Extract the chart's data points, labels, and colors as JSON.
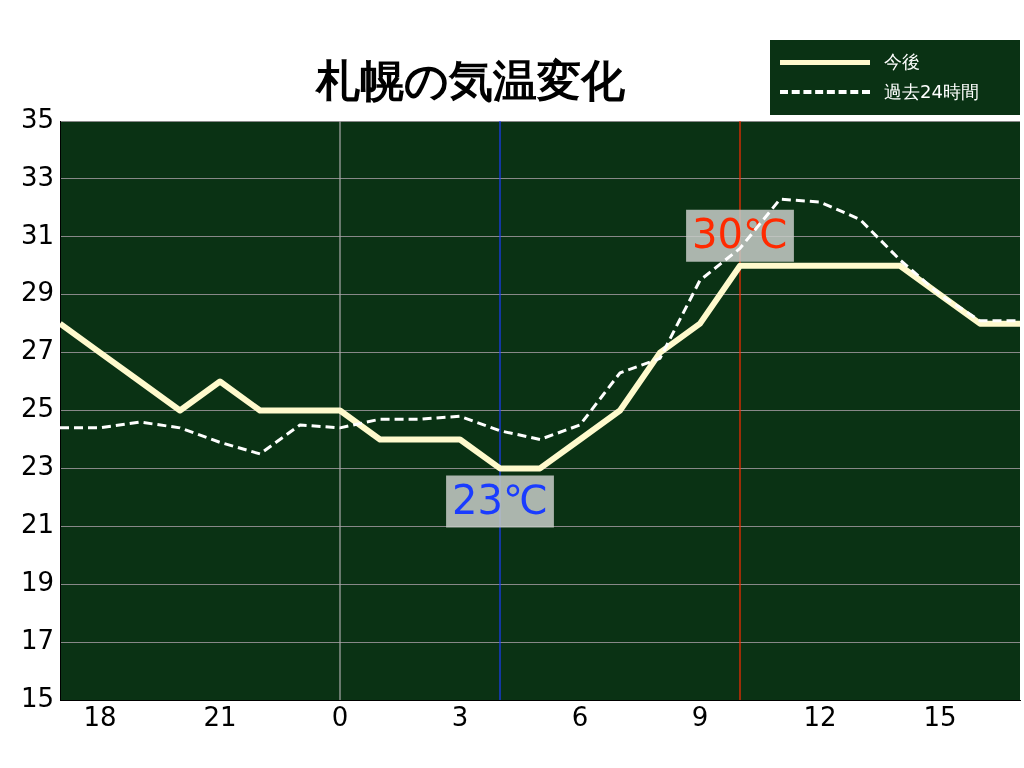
{
  "chart_data": {
    "type": "line",
    "title": "札幌の気温変化",
    "x": [
      "--01-01T17:00",
      "--01-01T18:00",
      "--01-01T19:00",
      "--01-01T20:00",
      "--01-01T21:00",
      "--01-01T22:00",
      "--01-01T23:00",
      "--01-02T00:00",
      "--01-02T01:00",
      "--01-02T02:00",
      "--01-02T03:00",
      "--01-02T04:00",
      "--01-02T05:00",
      "--01-02T06:00",
      "--01-02T07:00",
      "--01-02T08:00",
      "--01-02T09:00",
      "--01-02T10:00",
      "--01-02T11:00",
      "--01-02T12:00",
      "--01-02T13:00",
      "--01-02T14:00",
      "--01-02T15:00",
      "--01-02T16:00",
      "--01-02T17:00"
    ],
    "series": [
      {
        "name": "今後",
        "color": "#fffacd",
        "line_style": "solid",
        "values": [
          28,
          27,
          26,
          25,
          26,
          25,
          25,
          25,
          24,
          24,
          24,
          23,
          23,
          24,
          25,
          27,
          28,
          30,
          30,
          30,
          30,
          30,
          29,
          28,
          28
        ]
      },
      {
        "name": "過去24時間",
        "color": "#ffffff",
        "line_style": "dashed",
        "values": [
          24.4,
          24.4,
          24.6,
          24.4,
          23.9,
          23.5,
          24.5,
          24.4,
          24.7,
          24.7,
          24.8,
          24.3,
          24.0,
          24.5,
          26.3,
          26.8,
          29.5,
          30.6,
          32.3,
          32.2,
          31.6,
          30.2,
          29.0,
          28.1,
          28.1
        ]
      }
    ],
    "xlim": [
      "--01-01T17:00",
      "--01-02T17:00"
    ],
    "xticks": [
      {
        "value": "--01-01T18:00",
        "label": "18"
      },
      {
        "value": "--01-01T21:00",
        "label": "21"
      },
      {
        "value": "--01-02T00:00",
        "label": "0"
      },
      {
        "value": "--01-02T03:00",
        "label": "3"
      },
      {
        "value": "--01-02T06:00",
        "label": "6"
      },
      {
        "value": "--01-02T09:00",
        "label": "9"
      },
      {
        "value": "--01-02T12:00",
        "label": "12"
      },
      {
        "value": "--01-02T15:00",
        "label": "15"
      }
    ],
    "ylim": [
      15,
      35
    ],
    "yticks": [
      15,
      17,
      19,
      21,
      23,
      25,
      27,
      29,
      31,
      33,
      35
    ],
    "grid": "y",
    "legend": "top right",
    "marker": "none",
    "ref_lines": [
      {
        "axis": "x",
        "value": "--01-02T00:00",
        "color": "#aaaaaa"
      },
      {
        "axis": "x",
        "value": "--01-02T04:00",
        "color": "#1a3cff"
      },
      {
        "axis": "x",
        "value": "--01-02T10:00",
        "color": "#ff2a00"
      }
    ],
    "annotations": [
      {
        "text": "23℃",
        "x": "--01-02T04:00",
        "y": 23
      },
      {
        "text": "30℃",
        "x": "--01-02T10:00",
        "y": 30
      }
    ]
  }
}
